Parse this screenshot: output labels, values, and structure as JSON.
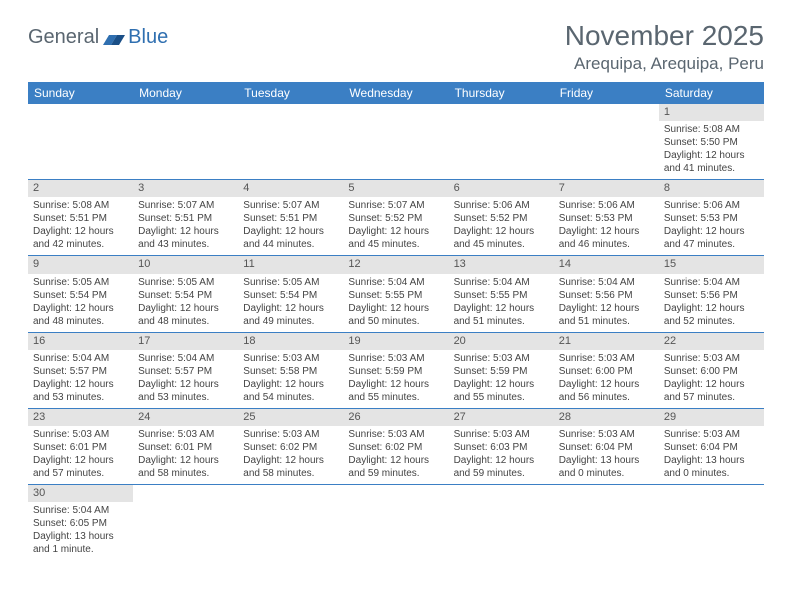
{
  "logo": {
    "text1": "General",
    "text2": "Blue"
  },
  "title": "November 2025",
  "location": "Arequipa, Arequipa, Peru",
  "colors": {
    "header_bg": "#3b7fc4",
    "header_text": "#ffffff",
    "daynum_bg": "#e4e4e4",
    "body_text": "#444444",
    "title_text": "#5a6670",
    "logo_blue": "#2f6fb0",
    "cell_border": "#3b7fc4"
  },
  "weekdays": [
    "Sunday",
    "Monday",
    "Tuesday",
    "Wednesday",
    "Thursday",
    "Friday",
    "Saturday"
  ],
  "layout": {
    "first_weekday_index": 6,
    "days_in_month": 30
  },
  "days": {
    "1": {
      "sunrise": "5:08 AM",
      "sunset": "5:50 PM",
      "daylight": "12 hours and 41 minutes."
    },
    "2": {
      "sunrise": "5:08 AM",
      "sunset": "5:51 PM",
      "daylight": "12 hours and 42 minutes."
    },
    "3": {
      "sunrise": "5:07 AM",
      "sunset": "5:51 PM",
      "daylight": "12 hours and 43 minutes."
    },
    "4": {
      "sunrise": "5:07 AM",
      "sunset": "5:51 PM",
      "daylight": "12 hours and 44 minutes."
    },
    "5": {
      "sunrise": "5:07 AM",
      "sunset": "5:52 PM",
      "daylight": "12 hours and 45 minutes."
    },
    "6": {
      "sunrise": "5:06 AM",
      "sunset": "5:52 PM",
      "daylight": "12 hours and 45 minutes."
    },
    "7": {
      "sunrise": "5:06 AM",
      "sunset": "5:53 PM",
      "daylight": "12 hours and 46 minutes."
    },
    "8": {
      "sunrise": "5:06 AM",
      "sunset": "5:53 PM",
      "daylight": "12 hours and 47 minutes."
    },
    "9": {
      "sunrise": "5:05 AM",
      "sunset": "5:54 PM",
      "daylight": "12 hours and 48 minutes."
    },
    "10": {
      "sunrise": "5:05 AM",
      "sunset": "5:54 PM",
      "daylight": "12 hours and 48 minutes."
    },
    "11": {
      "sunrise": "5:05 AM",
      "sunset": "5:54 PM",
      "daylight": "12 hours and 49 minutes."
    },
    "12": {
      "sunrise": "5:04 AM",
      "sunset": "5:55 PM",
      "daylight": "12 hours and 50 minutes."
    },
    "13": {
      "sunrise": "5:04 AM",
      "sunset": "5:55 PM",
      "daylight": "12 hours and 51 minutes."
    },
    "14": {
      "sunrise": "5:04 AM",
      "sunset": "5:56 PM",
      "daylight": "12 hours and 51 minutes."
    },
    "15": {
      "sunrise": "5:04 AM",
      "sunset": "5:56 PM",
      "daylight": "12 hours and 52 minutes."
    },
    "16": {
      "sunrise": "5:04 AM",
      "sunset": "5:57 PM",
      "daylight": "12 hours and 53 minutes."
    },
    "17": {
      "sunrise": "5:04 AM",
      "sunset": "5:57 PM",
      "daylight": "12 hours and 53 minutes."
    },
    "18": {
      "sunrise": "5:03 AM",
      "sunset": "5:58 PM",
      "daylight": "12 hours and 54 minutes."
    },
    "19": {
      "sunrise": "5:03 AM",
      "sunset": "5:59 PM",
      "daylight": "12 hours and 55 minutes."
    },
    "20": {
      "sunrise": "5:03 AM",
      "sunset": "5:59 PM",
      "daylight": "12 hours and 55 minutes."
    },
    "21": {
      "sunrise": "5:03 AM",
      "sunset": "6:00 PM",
      "daylight": "12 hours and 56 minutes."
    },
    "22": {
      "sunrise": "5:03 AM",
      "sunset": "6:00 PM",
      "daylight": "12 hours and 57 minutes."
    },
    "23": {
      "sunrise": "5:03 AM",
      "sunset": "6:01 PM",
      "daylight": "12 hours and 57 minutes."
    },
    "24": {
      "sunrise": "5:03 AM",
      "sunset": "6:01 PM",
      "daylight": "12 hours and 58 minutes."
    },
    "25": {
      "sunrise": "5:03 AM",
      "sunset": "6:02 PM",
      "daylight": "12 hours and 58 minutes."
    },
    "26": {
      "sunrise": "5:03 AM",
      "sunset": "6:02 PM",
      "daylight": "12 hours and 59 minutes."
    },
    "27": {
      "sunrise": "5:03 AM",
      "sunset": "6:03 PM",
      "daylight": "12 hours and 59 minutes."
    },
    "28": {
      "sunrise": "5:03 AM",
      "sunset": "6:04 PM",
      "daylight": "13 hours and 0 minutes."
    },
    "29": {
      "sunrise": "5:03 AM",
      "sunset": "6:04 PM",
      "daylight": "13 hours and 0 minutes."
    },
    "30": {
      "sunrise": "5:04 AM",
      "sunset": "6:05 PM",
      "daylight": "13 hours and 1 minute."
    }
  },
  "labels": {
    "sunrise": "Sunrise: ",
    "sunset": "Sunset: ",
    "daylight": "Daylight: "
  }
}
